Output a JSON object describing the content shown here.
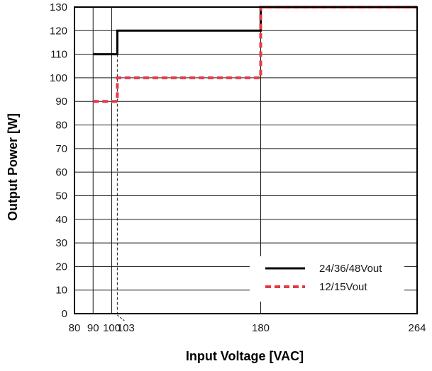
{
  "chart_data": {
    "type": "line",
    "xlabel": "Input Voltage [VAC]",
    "ylabel": "Output Power [W]",
    "xlim": [
      80,
      264
    ],
    "ylim": [
      0,
      130
    ],
    "grid": true,
    "legend_position": "bottom-right",
    "x_ticks": [
      {
        "value": 80,
        "label": "80"
      },
      {
        "value": 90,
        "label": "90"
      },
      {
        "value": 100,
        "label": "100"
      },
      {
        "value": 103,
        "label": "103"
      },
      {
        "value": 180,
        "label": "180"
      },
      {
        "value": 264,
        "label": "264"
      }
    ],
    "y_ticks": [
      0,
      10,
      20,
      30,
      40,
      50,
      60,
      70,
      80,
      90,
      100,
      110,
      120,
      130
    ],
    "series": [
      {
        "name": "24/36/48Vout",
        "color": "#000000",
        "style": "solid",
        "points": [
          [
            90,
            110
          ],
          [
            103,
            110
          ],
          [
            103,
            120
          ],
          [
            180,
            120
          ],
          [
            180,
            130
          ],
          [
            264,
            130
          ]
        ]
      },
      {
        "name": "12/15Vout",
        "color": "#e63a46",
        "style": "dashed",
        "points": [
          [
            90,
            90
          ],
          [
            103,
            90
          ],
          [
            103,
            100
          ],
          [
            180,
            100
          ],
          [
            180,
            130
          ],
          [
            264,
            130
          ]
        ]
      }
    ]
  }
}
